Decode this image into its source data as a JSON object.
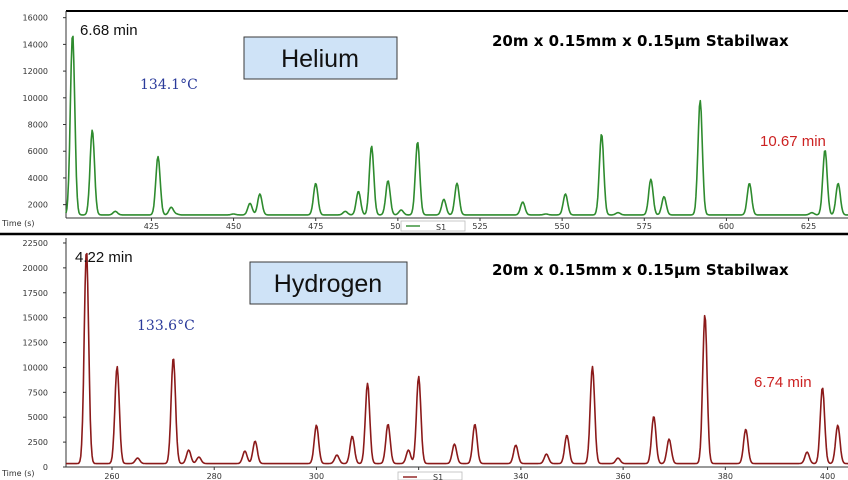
{
  "chart_data": [
    {
      "type": "line",
      "panel": "top",
      "series": [
        {
          "values_desc": "chromatogram",
          "color": "#2e8b2e"
        }
      ],
      "gas_label": "Helium",
      "column_label": "20m x 0.15mm x 0.15µm Stabilwax",
      "start_time_label": "6.68 min",
      "temp_label": "134.1°C",
      "end_time_label": "10.67 min",
      "xlabel": "Time (s)",
      "xlim": [
        399,
        637
      ],
      "ylim": [
        1000,
        16500
      ],
      "x_ticks": [
        425,
        450,
        475,
        500,
        525,
        550,
        575,
        600,
        625
      ],
      "y_ticks": [
        2000,
        4000,
        6000,
        8000,
        10000,
        12000,
        14000,
        16000
      ],
      "legend_label": "S1",
      "peaks": [
        {
          "x": 401,
          "y": 14800
        },
        {
          "x": 407,
          "y": 7600
        },
        {
          "x": 414,
          "y": 1500
        },
        {
          "x": 427,
          "y": 5600
        },
        {
          "x": 431,
          "y": 1800
        },
        {
          "x": 432.5,
          "y": 1300
        },
        {
          "x": 450,
          "y": 1300
        },
        {
          "x": 455,
          "y": 2100
        },
        {
          "x": 458,
          "y": 2800
        },
        {
          "x": 475,
          "y": 3600
        },
        {
          "x": 484,
          "y": 1500
        },
        {
          "x": 488,
          "y": 3000
        },
        {
          "x": 492,
          "y": 6400
        },
        {
          "x": 497,
          "y": 3800
        },
        {
          "x": 501,
          "y": 1600
        },
        {
          "x": 506,
          "y": 6700
        },
        {
          "x": 514,
          "y": 2400
        },
        {
          "x": 518,
          "y": 3600
        },
        {
          "x": 538,
          "y": 2200
        },
        {
          "x": 545,
          "y": 1300
        },
        {
          "x": 551,
          "y": 2800
        },
        {
          "x": 562,
          "y": 7300
        },
        {
          "x": 567,
          "y": 1400
        },
        {
          "x": 577,
          "y": 3900
        },
        {
          "x": 581,
          "y": 2600
        },
        {
          "x": 592,
          "y": 9800
        },
        {
          "x": 607,
          "y": 3600
        },
        {
          "x": 626,
          "y": 1400
        },
        {
          "x": 630,
          "y": 6100
        },
        {
          "x": 634,
          "y": 3600
        }
      ]
    },
    {
      "type": "line",
      "panel": "bottom",
      "series": [
        {
          "values_desc": "chromatogram",
          "color": "#8b1a1a"
        }
      ],
      "gas_label": "Hydrogen",
      "column_label": "20m x 0.15mm x 0.15µm Stabilwax",
      "start_time_label": "4.22 min",
      "temp_label": "133.6°C",
      "end_time_label": "6.74 min",
      "xlabel": "Time (s)",
      "xlim": [
        251,
        404
      ],
      "ylim": [
        0,
        23000
      ],
      "x_ticks": [
        260,
        280,
        300,
        320,
        340,
        360,
        380,
        400
      ],
      "y_ticks": [
        0,
        2500,
        5000,
        7500,
        10000,
        12500,
        15000,
        17500,
        20000,
        22500
      ],
      "legend_label": "S1",
      "peaks": [
        {
          "x": 255,
          "y": 21800
        },
        {
          "x": 261,
          "y": 10100
        },
        {
          "x": 265,
          "y": 900
        },
        {
          "x": 272,
          "y": 11000
        },
        {
          "x": 275,
          "y": 1700
        },
        {
          "x": 277,
          "y": 1000
        },
        {
          "x": 286,
          "y": 1600
        },
        {
          "x": 288,
          "y": 2600
        },
        {
          "x": 300,
          "y": 4200
        },
        {
          "x": 304,
          "y": 1200
        },
        {
          "x": 307,
          "y": 3100
        },
        {
          "x": 310,
          "y": 8400
        },
        {
          "x": 314,
          "y": 4300
        },
        {
          "x": 318,
          "y": 1700
        },
        {
          "x": 320,
          "y": 9100
        },
        {
          "x": 327,
          "y": 2300
        },
        {
          "x": 331,
          "y": 4300
        },
        {
          "x": 339,
          "y": 2200
        },
        {
          "x": 345,
          "y": 1300
        },
        {
          "x": 349,
          "y": 3200
        },
        {
          "x": 354,
          "y": 10100
        },
        {
          "x": 359,
          "y": 900
        },
        {
          "x": 366,
          "y": 5100
        },
        {
          "x": 369,
          "y": 2800
        },
        {
          "x": 376,
          "y": 15300
        },
        {
          "x": 384,
          "y": 3800
        },
        {
          "x": 396,
          "y": 1500
        },
        {
          "x": 399,
          "y": 8000
        },
        {
          "x": 402,
          "y": 4200
        }
      ]
    }
  ]
}
